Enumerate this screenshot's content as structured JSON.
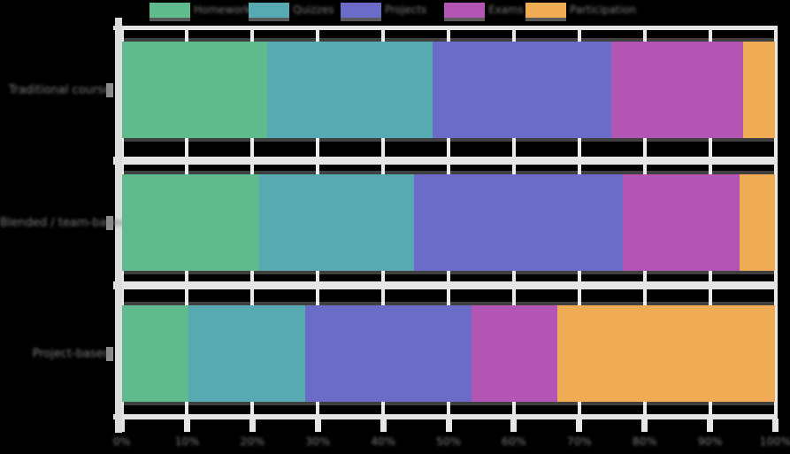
{
  "figure": {
    "background_color": "#000000",
    "grid_color": "#e9e9e9",
    "spine_color": "#dcdcdc",
    "text_color": "#7c7c7c",
    "note": "text in source image is blurred/illegible; labels approximated"
  },
  "chart_data": {
    "type": "bar",
    "orientation": "horizontal",
    "stacked": true,
    "title": "",
    "xlabel": "",
    "ylabel": "",
    "xlim": [
      0,
      100
    ],
    "grid": true,
    "legend_position": "top",
    "categories": [
      "Traditional course",
      "Blended / team-based",
      "Project-based"
    ],
    "series": [
      {
        "name": "Homework",
        "color": "#5fba8e",
        "values": [
          22.3,
          21.1,
          10.2
        ]
      },
      {
        "name": "Quizzes",
        "color": "#57aab2",
        "values": [
          25.2,
          23.6,
          17.9
        ]
      },
      {
        "name": "Projects",
        "color": "#6a6cc8",
        "values": [
          27.4,
          31.9,
          25.4
        ]
      },
      {
        "name": "Exams",
        "color": "#b355b2",
        "values": [
          20.2,
          17.9,
          13.2
        ]
      },
      {
        "name": "Participation",
        "color": "#f0ac54",
        "values": [
          4.9,
          5.5,
          33.3
        ]
      }
    ],
    "x_ticks": {
      "values": [
        0,
        10,
        20,
        30,
        40,
        50,
        60,
        70,
        80,
        90,
        100
      ],
      "labels": [
        "0%",
        "10%",
        "20%",
        "30%",
        "40%",
        "50%",
        "60%",
        "70%",
        "80%",
        "90%",
        "100%"
      ]
    }
  }
}
